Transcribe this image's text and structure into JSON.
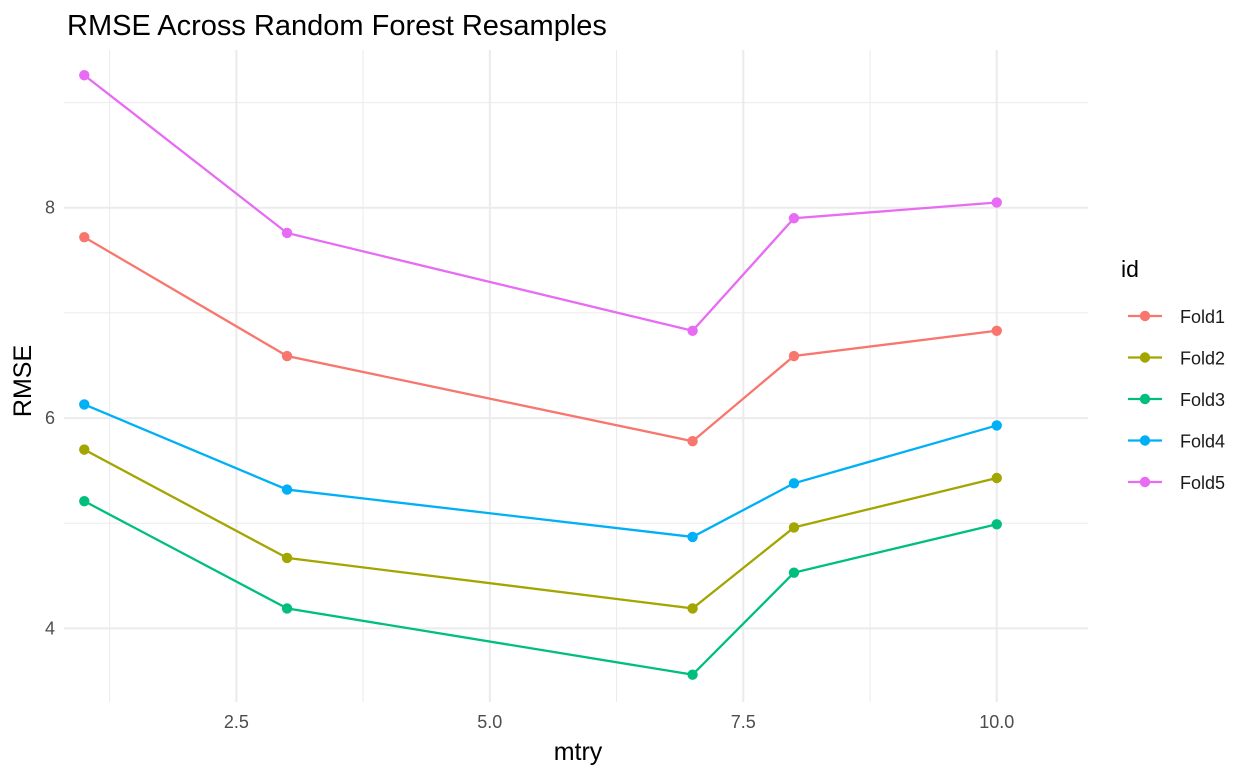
{
  "chart_data": {
    "type": "line",
    "title": "RMSE Across Random Forest Resamples",
    "xlabel": "mtry",
    "ylabel": "RMSE",
    "x": [
      1,
      3,
      7,
      8,
      10
    ],
    "xlim": [
      0.8,
      10.9
    ],
    "ylim": [
      3.3,
      9.5
    ],
    "x_ticks": [
      2.5,
      5.0,
      7.5,
      10.0
    ],
    "x_tick_labels": [
      "2.5",
      "5.0",
      "7.5",
      "10.0"
    ],
    "y_ticks": [
      4,
      6,
      8
    ],
    "y_tick_labels": [
      "4",
      "6",
      "8"
    ],
    "grid": true,
    "legend": {
      "title": "id",
      "position": "right"
    },
    "series": [
      {
        "name": "Fold1",
        "color": "#F8766D",
        "values": [
          7.72,
          6.59,
          5.78,
          6.59,
          6.83
        ]
      },
      {
        "name": "Fold2",
        "color": "#A3A500",
        "values": [
          5.7,
          4.67,
          4.19,
          4.96,
          5.43
        ]
      },
      {
        "name": "Fold3",
        "color": "#00BF7D",
        "values": [
          5.21,
          4.19,
          3.56,
          4.53,
          4.99
        ]
      },
      {
        "name": "Fold4",
        "color": "#00B0F6",
        "values": [
          6.13,
          5.32,
          4.87,
          5.38,
          5.93
        ]
      },
      {
        "name": "Fold5",
        "color": "#E76BF3",
        "values": [
          9.26,
          7.76,
          6.83,
          7.9,
          8.05
        ]
      }
    ]
  }
}
